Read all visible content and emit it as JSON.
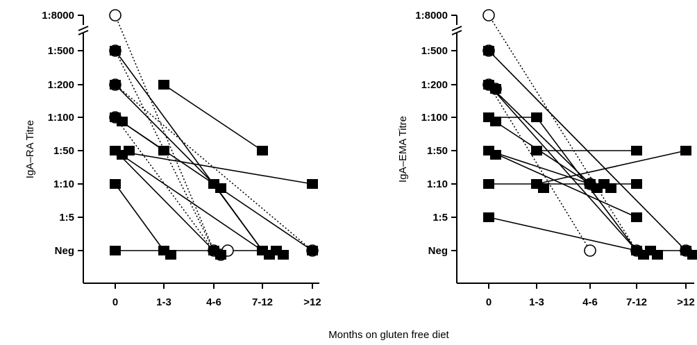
{
  "figure": {
    "shared_xlabel": "Months on gluten free diet",
    "colors": {
      "ink": "#000000",
      "open_marker_fill": "#ffffff"
    }
  },
  "chart_data": [
    {
      "type": "scatter",
      "ylabel": "IgA–RA Titre",
      "xlabel": "",
      "categories": [
        "0",
        "1-3",
        "4-6",
        "7-12",
        ">12"
      ],
      "y_ticks": [
        "Neg",
        "1:5",
        "1:10",
        "1:50",
        "1:100",
        "1:200",
        "1:500",
        "1:8000"
      ],
      "y_axis_break": "between 1:500 and 1:8000",
      "grid": false,
      "marker_legend": {
        "filled_square": "solid line",
        "open_circle": "dotted line"
      },
      "series": [
        {
          "marker": "circle",
          "line": "dotted",
          "points": [
            [
              "0",
              "1:8000"
            ],
            [
              "4-6",
              "Neg"
            ]
          ]
        },
        {
          "marker": "circle",
          "line": "dotted",
          "points": [
            [
              "0",
              "1:500"
            ],
            [
              "4-6",
              "Neg"
            ]
          ]
        },
        {
          "marker": "circle",
          "line": "dotted",
          "points": [
            [
              "0",
              "1:200"
            ],
            [
              ">12",
              "Neg"
            ]
          ]
        },
        {
          "marker": "circle",
          "line": "dotted",
          "points": [
            [
              "0",
              "1:100"
            ],
            [
              "4-6",
              "Neg"
            ]
          ]
        },
        {
          "marker": "square",
          "line": "solid",
          "points": [
            [
              "0",
              "1:500"
            ],
            [
              "7-12",
              "Neg"
            ]
          ]
        },
        {
          "marker": "square",
          "line": "solid",
          "points": [
            [
              "0",
              "1:200"
            ],
            [
              "4-6",
              "1:10"
            ]
          ]
        },
        {
          "marker": "square",
          "line": "solid",
          "points": [
            [
              "1-3",
              "1:200"
            ],
            [
              "7-12",
              "1:50"
            ]
          ]
        },
        {
          "marker": "square",
          "line": "solid",
          "points": [
            [
              "0",
              "1:100"
            ],
            [
              "1-3",
              "1:50"
            ]
          ]
        },
        {
          "marker": "square",
          "line": "solid",
          "points": [
            [
              "0",
              "1:100"
            ],
            [
              ">12",
              "Neg"
            ]
          ]
        },
        {
          "marker": "square",
          "line": "solid",
          "points": [
            [
              "0",
              "1:50"
            ],
            [
              ">12",
              "1:10"
            ]
          ]
        },
        {
          "marker": "square",
          "line": "solid",
          "points": [
            [
              "0",
              "1:50"
            ],
            [
              "7-12",
              "Neg"
            ]
          ]
        },
        {
          "marker": "square",
          "line": "solid",
          "points": [
            [
              "0",
              "1:50"
            ],
            [
              "4-6",
              "Neg"
            ]
          ]
        },
        {
          "marker": "square",
          "line": "solid",
          "points": [
            [
              "0",
              "1:10"
            ],
            [
              "1-3",
              "Neg"
            ]
          ]
        },
        {
          "marker": "square",
          "line": "solid",
          "points": [
            [
              "0",
              "Neg"
            ],
            [
              "1-3",
              "Neg"
            ],
            [
              "4-6",
              "Neg"
            ],
            [
              "7-12",
              "Neg"
            ]
          ]
        },
        {
          "marker": "square",
          "line": "solid",
          "points": [
            [
              "4-6",
              "1:10"
            ],
            [
              "7-12",
              "Neg"
            ]
          ]
        }
      ]
    },
    {
      "type": "scatter",
      "ylabel": "IgA–EMA Titre",
      "xlabel": "",
      "categories": [
        "0",
        "1-3",
        "4-6",
        "7-12",
        ">12"
      ],
      "y_ticks": [
        "Neg",
        "1:5",
        "1:10",
        "1:50",
        "1:100",
        "1:200",
        "1:500",
        "1:8000"
      ],
      "y_axis_break": "between 1:500 and 1:8000",
      "grid": false,
      "marker_legend": {
        "filled_square": "solid line",
        "open_circle": "dotted line"
      },
      "series": [
        {
          "marker": "circle",
          "line": "dotted",
          "points": [
            [
              "0",
              "1:8000"
            ],
            [
              "7-12",
              "Neg"
            ]
          ]
        },
        {
          "marker": "circle",
          "line": "dotted",
          "points": [
            [
              "0",
              "1:500"
            ],
            [
              ">12",
              "Neg"
            ]
          ]
        },
        {
          "marker": "circle",
          "line": "dotted",
          "points": [
            [
              "0",
              "1:200"
            ],
            [
              "4-6",
              "Neg"
            ]
          ]
        },
        {
          "marker": "circle",
          "line": "dotted",
          "points": [
            [
              "0",
              "1:200"
            ],
            [
              "4-6",
              "1:10"
            ]
          ]
        },
        {
          "marker": "square",
          "line": "solid",
          "points": [
            [
              "0",
              "1:500"
            ],
            [
              ">12",
              "Neg"
            ]
          ]
        },
        {
          "marker": "square",
          "line": "solid",
          "points": [
            [
              "0",
              "1:200"
            ],
            [
              "4-6",
              "1:10"
            ]
          ]
        },
        {
          "marker": "square",
          "line": "solid",
          "points": [
            [
              "0",
              "1:200"
            ],
            [
              "7-12",
              "Neg"
            ]
          ]
        },
        {
          "marker": "square",
          "line": "solid",
          "points": [
            [
              "0",
              "1:100"
            ],
            [
              "1-3",
              "1:100"
            ],
            [
              "7-12",
              "Neg"
            ]
          ]
        },
        {
          "marker": "square",
          "line": "solid",
          "points": [
            [
              "0",
              "1:100"
            ],
            [
              "4-6",
              "1:10"
            ]
          ]
        },
        {
          "marker": "square",
          "line": "solid",
          "points": [
            [
              "0",
              "1:50"
            ],
            [
              "4-6",
              "1:10"
            ],
            [
              "7-12",
              "1:10"
            ]
          ]
        },
        {
          "marker": "square",
          "line": "solid",
          "points": [
            [
              "0",
              "1:50"
            ],
            [
              "7-12",
              "1:5"
            ]
          ]
        },
        {
          "marker": "square",
          "line": "solid",
          "points": [
            [
              "1-3",
              "1:50"
            ],
            [
              "7-12",
              "1:50"
            ]
          ]
        },
        {
          "marker": "square",
          "line": "solid",
          "points": [
            [
              "0",
              "1:10"
            ],
            [
              "1-3",
              "1:10"
            ],
            [
              "4-6",
              "1:10"
            ]
          ]
        },
        {
          "marker": "square",
          "line": "solid",
          "points": [
            [
              "0",
              "1:5"
            ],
            [
              "7-12",
              "Neg"
            ]
          ]
        },
        {
          "marker": "square",
          "line": "solid",
          "points": [
            [
              "1-3",
              "1:10"
            ],
            [
              ">12",
              "1:50"
            ]
          ]
        },
        {
          "marker": "square",
          "line": "solid",
          "points": [
            [
              "7-12",
              "Neg"
            ],
            [
              ">12",
              "Neg"
            ]
          ]
        }
      ]
    }
  ]
}
